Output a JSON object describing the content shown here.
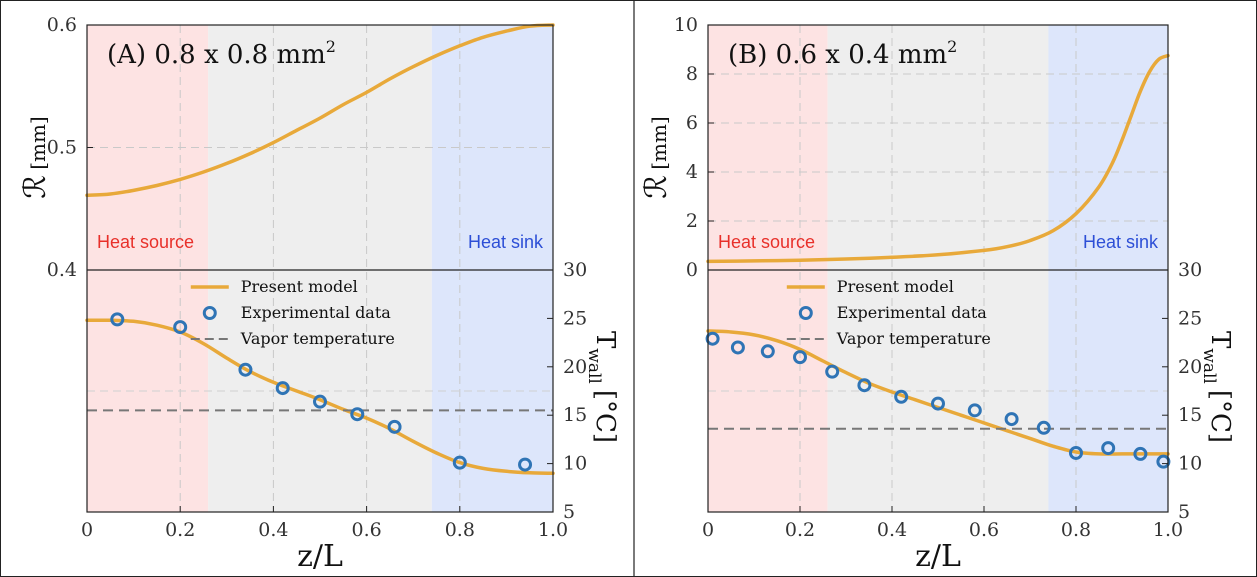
{
  "chart_data": [
    {
      "type": "line",
      "panel": "A",
      "title": {
        "main": "(A) 0.8 x 0.8 mm",
        "sup": "2"
      },
      "xlabel": "z/L",
      "x_ticks": [
        "0",
        "0.2",
        "0.4",
        "0.6",
        "0.8",
        "1.0"
      ],
      "xlim": [
        0,
        1
      ],
      "top": {
        "ylabel": "ℛ",
        "ylabel_unit": "[mm]",
        "ylim": [
          0.4,
          0.6
        ],
        "y_ticks": [
          "0.4",
          "0.5",
          "0.6"
        ],
        "regions": [
          {
            "name": "Heat source",
            "x_range": [
              0,
              0.26
            ],
            "fill": "#fde3e3",
            "text_color": "#e8302a"
          },
          {
            "name": "",
            "x_range": [
              0.26,
              0.74
            ],
            "fill": "#eeeeee",
            "text_color": ""
          },
          {
            "name": "Heat sink",
            "x_range": [
              0.74,
              1.0
            ],
            "fill": "#dde6fb",
            "text_color": "#2d4fd6"
          }
        ],
        "series": [
          {
            "color": "#e8a93a",
            "x": [
              0,
              0.05,
              0.1,
              0.15,
              0.2,
              0.25,
              0.3,
              0.35,
              0.4,
              0.45,
              0.5,
              0.55,
              0.6,
              0.65,
              0.7,
              0.75,
              0.8,
              0.85,
              0.9,
              0.95,
              1.0
            ],
            "y": [
              0.461,
              0.462,
              0.465,
              0.469,
              0.474,
              0.48,
              0.487,
              0.495,
              0.504,
              0.514,
              0.524,
              0.535,
              0.545,
              0.556,
              0.566,
              0.575,
              0.583,
              0.59,
              0.595,
              0.599,
              0.6
            ]
          }
        ]
      },
      "bottom": {
        "ylabel": "T",
        "ylabel_sub": "wall",
        "ylabel_unit": "[°C]",
        "ylim": [
          5,
          30
        ],
        "y_ticks": [
          "5",
          "10",
          "15",
          "20",
          "25",
          "30"
        ],
        "legend": [
          "Present model",
          "Experimental data",
          "Vapor temperature"
        ],
        "series": [
          {
            "name": "Present model",
            "color": "#e8a93a",
            "x": [
              0,
              0.05,
              0.1,
              0.15,
              0.2,
              0.25,
              0.3,
              0.35,
              0.4,
              0.45,
              0.5,
              0.55,
              0.6,
              0.65,
              0.7,
              0.75,
              0.8,
              0.85,
              0.9,
              0.95,
              1.0
            ],
            "y": [
              24.8,
              24.8,
              24.7,
              24.3,
              23.6,
              22.4,
              20.9,
              19.5,
              18.4,
              17.5,
              16.6,
              15.6,
              14.7,
              13.6,
              12.3,
              11.1,
              10.1,
              9.5,
              9.2,
              9.05,
              9.0
            ]
          },
          {
            "name": "Experimental data",
            "color": "#2f74b5",
            "x": [
              0.065,
              0.2,
              0.34,
              0.42,
              0.5,
              0.58,
              0.66,
              0.8,
              0.94
            ],
            "y": [
              24.9,
              24.1,
              19.7,
              17.8,
              16.4,
              15.1,
              13.8,
              10.1,
              9.9
            ]
          },
          {
            "name": "Vapor temperature",
            "color": "#777777",
            "x": [
              0,
              1
            ],
            "y": [
              15.5,
              15.5
            ]
          }
        ],
        "faint_grid_y": 17.5
      }
    },
    {
      "type": "line",
      "panel": "B",
      "title": {
        "main": "(B) 0.6 x 0.4 mm",
        "sup": "2"
      },
      "xlabel": "z/L",
      "x_ticks": [
        "0",
        "0.2",
        "0.4",
        "0.6",
        "0.8",
        "1.0"
      ],
      "xlim": [
        0,
        1
      ],
      "top": {
        "ylabel": "ℛ",
        "ylabel_unit": "[mm]",
        "ylim": [
          0,
          10
        ],
        "y_ticks": [
          "0",
          "2",
          "4",
          "6",
          "8",
          "10"
        ],
        "regions": [
          {
            "name": "Heat source",
            "x_range": [
              0,
              0.26
            ],
            "fill": "#fde3e3",
            "text_color": "#e8302a"
          },
          {
            "name": "",
            "x_range": [
              0.26,
              0.74
            ],
            "fill": "#eeeeee",
            "text_color": ""
          },
          {
            "name": "Heat sink",
            "x_range": [
              0.74,
              1.0
            ],
            "fill": "#dde6fb",
            "text_color": "#2d4fd6"
          }
        ],
        "series": [
          {
            "color": "#e8a93a",
            "x": [
              0,
              0.1,
              0.2,
              0.3,
              0.4,
              0.5,
              0.6,
              0.65,
              0.7,
              0.75,
              0.8,
              0.85,
              0.88,
              0.9,
              0.92,
              0.94,
              0.96,
              0.98,
              1.0
            ],
            "y": [
              0.35,
              0.37,
              0.4,
              0.45,
              0.52,
              0.62,
              0.8,
              0.95,
              1.2,
              1.6,
              2.3,
              3.4,
              4.4,
              5.3,
              6.3,
              7.3,
              8.1,
              8.6,
              8.75
            ]
          }
        ]
      },
      "bottom": {
        "ylabel": "T",
        "ylabel_sub": "wall",
        "ylabel_unit": "[°C]",
        "ylim": [
          5,
          30
        ],
        "y_ticks": [
          "5",
          "10",
          "15",
          "20",
          "25",
          "30"
        ],
        "legend": [
          "Present model",
          "Experimental data",
          "Vapor temperature"
        ],
        "series": [
          {
            "name": "Present model",
            "color": "#e8a93a",
            "x": [
              0,
              0.05,
              0.1,
              0.15,
              0.2,
              0.25,
              0.3,
              0.35,
              0.4,
              0.45,
              0.5,
              0.55,
              0.6,
              0.65,
              0.7,
              0.75,
              0.8,
              0.85,
              0.9,
              0.95,
              1.0
            ],
            "y": [
              23.7,
              23.6,
              23.3,
              22.7,
              21.8,
              20.6,
              19.4,
              18.3,
              17.4,
              16.6,
              15.8,
              15.0,
              14.2,
              13.4,
              12.6,
              11.8,
              11.2,
              11.0,
              11.0,
              11.0,
              11.0
            ]
          },
          {
            "name": "Experimental data",
            "color": "#2f74b5",
            "x": [
              0.01,
              0.065,
              0.13,
              0.2,
              0.27,
              0.34,
              0.42,
              0.5,
              0.58,
              0.66,
              0.73,
              0.8,
              0.87,
              0.94,
              0.99
            ],
            "y": [
              22.9,
              22.0,
              21.6,
              21.0,
              19.5,
              18.1,
              16.9,
              16.2,
              15.5,
              14.6,
              13.7,
              11.1,
              11.6,
              11.0,
              10.2
            ]
          },
          {
            "name": "Vapor temperature",
            "color": "#777777",
            "x": [
              0,
              1
            ],
            "y": [
              13.6,
              13.6
            ]
          }
        ],
        "faint_grid_y": 17.5
      }
    }
  ]
}
